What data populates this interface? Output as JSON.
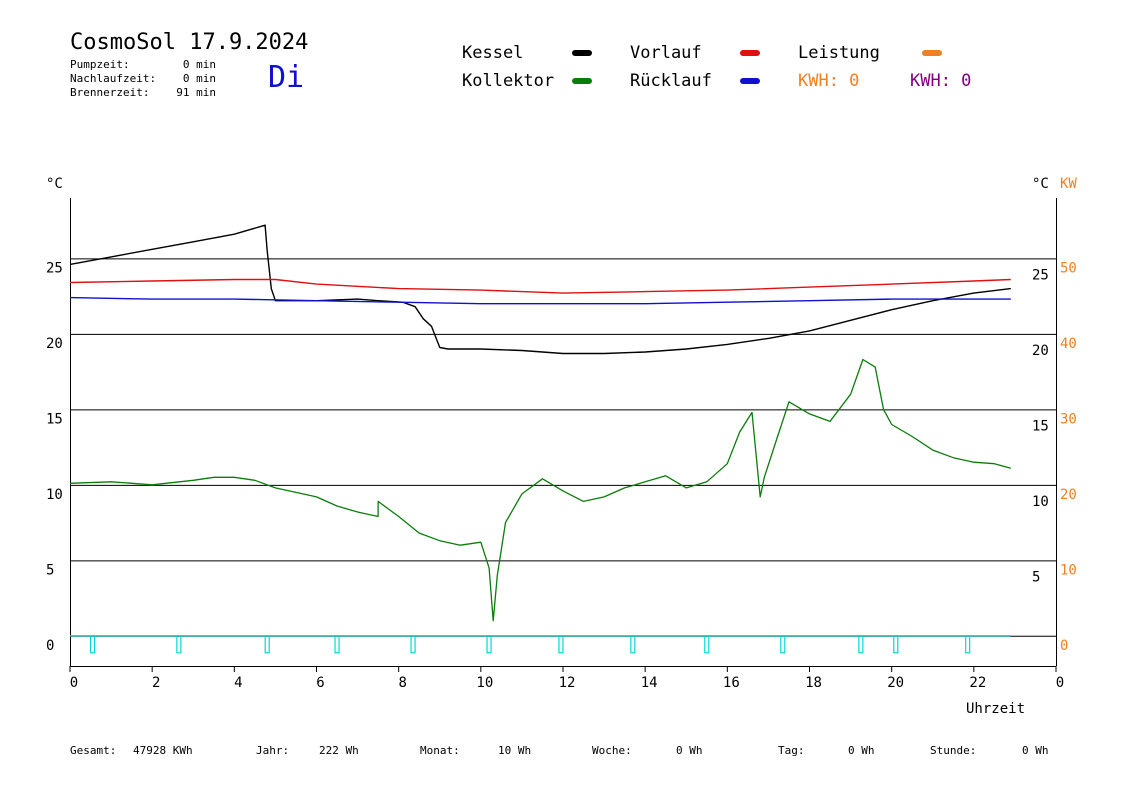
{
  "header": {
    "title": "CosmoSol 17.9.2024",
    "weekday": "Di",
    "stats": [
      {
        "label": "Pumpzeit:",
        "value": "0 min"
      },
      {
        "label": "Nachlaufzeit:",
        "value": "0 min"
      },
      {
        "label": "Brennerzeit:",
        "value": "91 min"
      }
    ]
  },
  "legend": {
    "kessel": "Kessel",
    "kollektor": "Kollektor",
    "vorlauf": "Vorlauf",
    "ruecklauf": "Rücklauf",
    "leistung": "Leistung",
    "kwh_a": "KWH: 0",
    "kwh_b": "KWH: 0"
  },
  "colors": {
    "kessel": "#000000",
    "kollektor": "#0a7d0a",
    "vorlauf": "#e01010",
    "ruecklauf": "#1010d0",
    "leistung": "#f08020",
    "kwh_b": "#800080",
    "pump": "#00d8d8",
    "weekday": "#1010d0"
  },
  "axes": {
    "left_unit": "°C",
    "right_unit": "°C",
    "right_unit2": "KW",
    "xlabel": "Uhrzeit"
  },
  "footer": [
    {
      "label": "Gesamt:",
      "value": "47928 KWh"
    },
    {
      "label": "Jahr:",
      "value": "222 Wh"
    },
    {
      "label": "Monat:",
      "value": "10 Wh"
    },
    {
      "label": "Woche:",
      "value": "0 Wh"
    },
    {
      "label": "Tag:",
      "value": "0 Wh"
    },
    {
      "label": "Stunde:",
      "value": "0 Wh"
    }
  ],
  "chart_data": {
    "type": "line",
    "xlabel": "Uhrzeit",
    "ylabel": "°C",
    "xlim": [
      0,
      24
    ],
    "ylim": [
      -2,
      29
    ],
    "x_ticks": [
      "0",
      "2",
      "4",
      "6",
      "8",
      "10",
      "12",
      "14",
      "16",
      "18",
      "20",
      "22",
      "0"
    ],
    "y_ticks_left": [
      0,
      5,
      10,
      15,
      20,
      25
    ],
    "y_ticks_right_c": [
      5,
      10,
      15,
      20,
      25
    ],
    "y_ticks_right_kw": [
      0,
      10,
      20,
      30,
      40,
      50
    ],
    "grid": true,
    "series": [
      {
        "name": "Kessel",
        "color": "#000000",
        "x": [
          0,
          1,
          2,
          3,
          4,
          4.75,
          4.8,
          4.9,
          5.0,
          6,
          7,
          7.5,
          8.1,
          8.4,
          8.6,
          8.8,
          8.9,
          9.0,
          9.2,
          10,
          11,
          12,
          13,
          14,
          15,
          16,
          17,
          18,
          19,
          20,
          21,
          22,
          22.9
        ],
        "y": [
          24.6,
          25.1,
          25.6,
          26.1,
          26.6,
          27.2,
          25.5,
          23.0,
          22.2,
          22.2,
          22.3,
          22.2,
          22.1,
          21.8,
          21.0,
          20.5,
          19.8,
          19.1,
          19.0,
          19.0,
          18.9,
          18.7,
          18.7,
          18.8,
          19.0,
          19.3,
          19.7,
          20.2,
          20.9,
          21.6,
          22.2,
          22.7,
          23.0
        ]
      },
      {
        "name": "Vorlauf",
        "color": "#e01010",
        "x": [
          0,
          2,
          4,
          5,
          6,
          8,
          10,
          12,
          14,
          16,
          18,
          20,
          22,
          22.9
        ],
        "y": [
          23.4,
          23.5,
          23.6,
          23.6,
          23.3,
          23.0,
          22.9,
          22.7,
          22.8,
          22.9,
          23.1,
          23.3,
          23.5,
          23.6
        ]
      },
      {
        "name": "Rücklauf",
        "color": "#1010d0",
        "x": [
          0,
          2,
          4,
          6,
          8,
          10,
          12,
          14,
          16,
          18,
          20,
          22,
          22.9
        ],
        "y": [
          22.4,
          22.3,
          22.3,
          22.2,
          22.1,
          22.0,
          22.0,
          22.0,
          22.1,
          22.2,
          22.3,
          22.3,
          22.3
        ]
      },
      {
        "name": "Kollektor",
        "color": "#0a7d0a",
        "x": [
          0,
          1,
          2,
          3,
          3.5,
          4,
          4.5,
          5,
          5.5,
          6,
          6.5,
          7,
          7.5,
          7.5,
          8,
          8.5,
          9,
          9.5,
          10,
          10.2,
          10.3,
          10.4,
          10.6,
          11,
          11.5,
          12,
          12.5,
          13,
          13.5,
          14,
          14.5,
          15,
          15.5,
          16,
          16.3,
          16.6,
          16.8,
          16.9,
          17.2,
          17.5,
          18,
          18.5,
          19,
          19.3,
          19.6,
          19.8,
          20,
          20.5,
          21,
          21.5,
          22,
          22.5,
          22.9
        ],
        "y": [
          10.1,
          10.2,
          10.0,
          10.3,
          10.5,
          10.5,
          10.3,
          9.8,
          9.5,
          9.2,
          8.6,
          8.2,
          7.9,
          8.9,
          7.9,
          6.8,
          6.3,
          6.0,
          6.2,
          4.5,
          1.0,
          4.0,
          7.5,
          9.4,
          10.4,
          9.6,
          8.9,
          9.2,
          9.8,
          10.2,
          10.6,
          9.8,
          10.2,
          11.4,
          13.5,
          14.8,
          9.2,
          10.5,
          13.0,
          15.5,
          14.7,
          14.2,
          16.0,
          18.3,
          17.8,
          15.0,
          14.0,
          13.2,
          12.3,
          11.8,
          11.5,
          11.4,
          11.1
        ]
      },
      {
        "name": "Pumpe",
        "color": "#00d8d8",
        "x": [
          0,
          22.9
        ],
        "y": [
          0,
          0
        ]
      }
    ],
    "pump_events": [
      0.55,
      2.65,
      4.8,
      6.5,
      8.35,
      10.2,
      11.95,
      13.7,
      15.5,
      17.35,
      19.25,
      20.1,
      21.85
    ]
  }
}
